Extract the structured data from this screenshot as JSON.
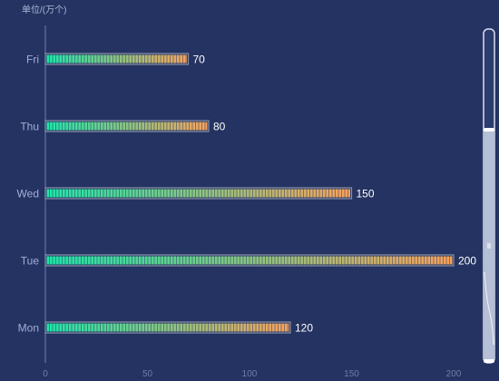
{
  "chart_data": {
    "type": "bar",
    "orientation": "horizontal",
    "unit_label": "单位/(万个)",
    "categories": [
      "Mon",
      "Tue",
      "Wed",
      "Thu",
      "Fri"
    ],
    "values": [
      120,
      200,
      150,
      80,
      70
    ],
    "xlim": [
      0,
      200
    ],
    "x_ticks": [
      0,
      50,
      100,
      150,
      200
    ],
    "grid": false,
    "bar_style": "segmented-pictorial",
    "colors": {
      "background": "#243361",
      "bar_start": "#1fe6a8",
      "bar_end": "#f7a35c",
      "bar_frame": "#8a93a8",
      "axis_line": "#6f7fae",
      "value_text": "#ffffff",
      "scrollbar_track": "#b5c0d6",
      "scrollbar_frame": "#d9dfef"
    }
  },
  "scrollbar": {
    "orientation": "vertical",
    "range_start_percent": 0,
    "range_end_percent": 70
  }
}
